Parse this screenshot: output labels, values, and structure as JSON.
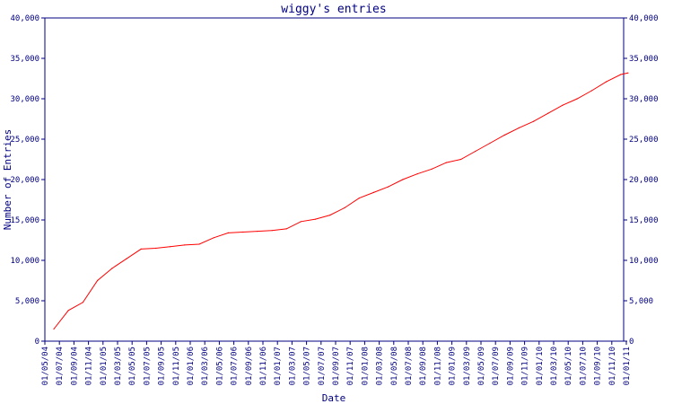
{
  "chart_data": {
    "type": "line",
    "title": "wiggy's entries",
    "xlabel": "Date",
    "ylabel": "Number of Entries",
    "ylim": [
      0,
      40000
    ],
    "yticks": [
      0,
      5000,
      10000,
      15000,
      20000,
      25000,
      30000,
      35000,
      40000
    ],
    "ytick_labels": [
      "0",
      "5,000",
      "10,000",
      "15,000",
      "20,000",
      "25,000",
      "30,000",
      "35,000",
      "40,000"
    ],
    "xtick_labels": [
      "01/05/04",
      "01/07/04",
      "01/09/04",
      "01/11/04",
      "01/01/05",
      "01/03/05",
      "01/05/05",
      "01/07/05",
      "01/09/05",
      "01/11/05",
      "01/01/06",
      "01/03/06",
      "01/05/06",
      "01/07/06",
      "01/09/06",
      "01/11/06",
      "01/01/07",
      "01/03/07",
      "01/05/07",
      "01/07/07",
      "01/09/07",
      "01/11/07",
      "01/01/08",
      "01/03/08",
      "01/05/08",
      "01/07/08",
      "01/09/08",
      "01/11/08",
      "01/01/09",
      "01/03/09",
      "01/05/09",
      "01/07/09",
      "01/09/09",
      "01/11/09",
      "01/01/10",
      "01/03/10",
      "01/05/10",
      "01/07/10",
      "01/09/10",
      "01/11/10",
      "01/01/11"
    ],
    "grid": false,
    "line_color": "#ff0000",
    "axis_color": "#000080",
    "series": [
      {
        "x": [
          "2004-05",
          "2004-07",
          "2004-09",
          "2004-11",
          "2005-01",
          "2005-03",
          "2005-05",
          "2005-07",
          "2005-09",
          "2005-11",
          "2006-01",
          "2006-03",
          "2006-05",
          "2006-07",
          "2006-09",
          "2006-11",
          "2007-01",
          "2007-03",
          "2007-05",
          "2007-07",
          "2007-09",
          "2007-11",
          "2008-01",
          "2008-03",
          "2008-05",
          "2008-07",
          "2008-09",
          "2008-11",
          "2009-01",
          "2009-03",
          "2009-05",
          "2009-07",
          "2009-09",
          "2009-11",
          "2010-01",
          "2010-03",
          "2010-05",
          "2010-07",
          "2010-09",
          "2010-11",
          "2010-12"
        ],
        "values": [
          1500,
          3800,
          4800,
          7500,
          9000,
          10200,
          11400,
          11500,
          11700,
          11900,
          12000,
          12800,
          13400,
          13500,
          13600,
          13700,
          13900,
          14800,
          15100,
          15600,
          16500,
          17700,
          18400,
          19100,
          20000,
          20700,
          21300,
          22100,
          22500,
          23500,
          24500,
          25500,
          26400,
          27200,
          28200,
          29200,
          30000,
          31000,
          32100,
          33000,
          33200
        ]
      }
    ]
  }
}
